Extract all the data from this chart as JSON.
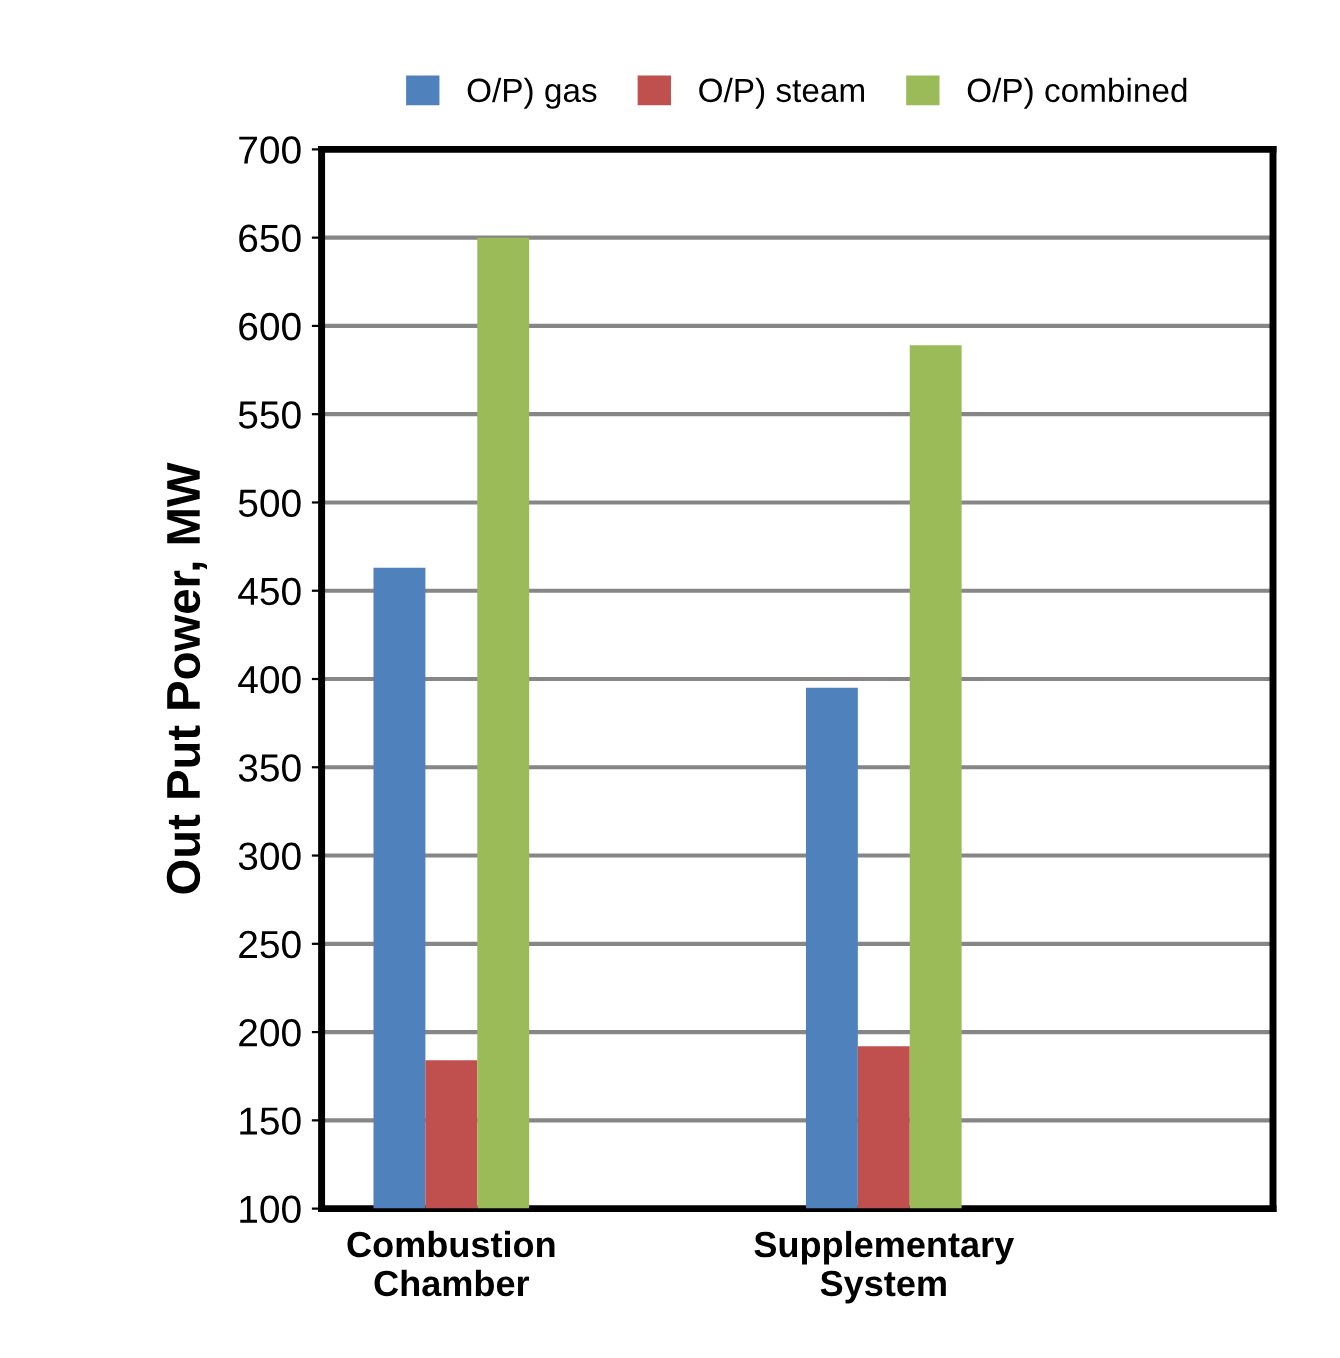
{
  "chart_data": {
    "type": "bar",
    "ylabel": "Out Put Power, MW",
    "categories": [
      "Combustion\nChamber",
      "Supplementary\nSystem"
    ],
    "series": [
      {
        "name": "O/P) gas",
        "color": "#4f81bd",
        "values": [
          463,
          395
        ]
      },
      {
        "name": "O/P) steam",
        "color": "#c0504d",
        "values": [
          184,
          192
        ]
      },
      {
        "name": "O/P) combined",
        "color": "#9bbb59",
        "values": [
          650,
          589
        ]
      }
    ],
    "ylim": [
      100,
      700
    ],
    "yticks": [
      100,
      150,
      200,
      250,
      300,
      350,
      400,
      450,
      500,
      550,
      600,
      650,
      700
    ],
    "grid": "y",
    "legend": "top"
  }
}
